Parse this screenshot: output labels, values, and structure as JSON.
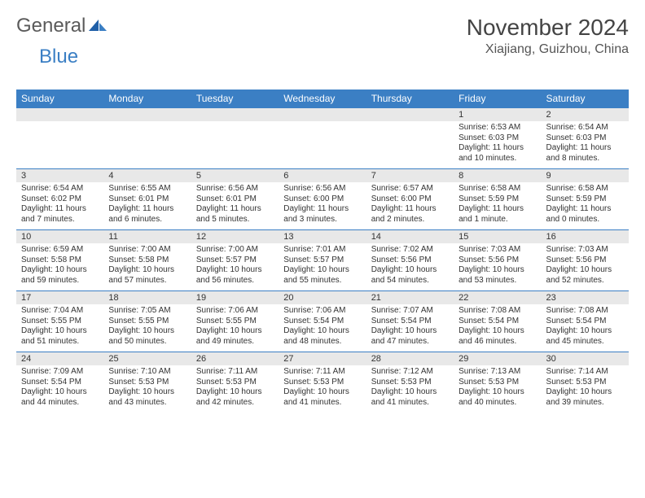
{
  "logo": {
    "part1": "General",
    "part2": "Blue"
  },
  "title": "November 2024",
  "location": "Xiajiang, Guizhou, China",
  "colors": {
    "header_bg": "#3b7fc4",
    "header_text": "#ffffff",
    "daynum_bg": "#e8e8e8",
    "border": "#3b7fc4",
    "body_text": "#333333",
    "logo_gray": "#5a5a5a",
    "logo_blue": "#3b7fc4"
  },
  "weekdays": [
    "Sunday",
    "Monday",
    "Tuesday",
    "Wednesday",
    "Thursday",
    "Friday",
    "Saturday"
  ],
  "weeks": [
    [
      null,
      null,
      null,
      null,
      null,
      {
        "n": "1",
        "sr": "6:53 AM",
        "ss": "6:03 PM",
        "dl": "11 hours and 10 minutes."
      },
      {
        "n": "2",
        "sr": "6:54 AM",
        "ss": "6:03 PM",
        "dl": "11 hours and 8 minutes."
      }
    ],
    [
      {
        "n": "3",
        "sr": "6:54 AM",
        "ss": "6:02 PM",
        "dl": "11 hours and 7 minutes."
      },
      {
        "n": "4",
        "sr": "6:55 AM",
        "ss": "6:01 PM",
        "dl": "11 hours and 6 minutes."
      },
      {
        "n": "5",
        "sr": "6:56 AM",
        "ss": "6:01 PM",
        "dl": "11 hours and 5 minutes."
      },
      {
        "n": "6",
        "sr": "6:56 AM",
        "ss": "6:00 PM",
        "dl": "11 hours and 3 minutes."
      },
      {
        "n": "7",
        "sr": "6:57 AM",
        "ss": "6:00 PM",
        "dl": "11 hours and 2 minutes."
      },
      {
        "n": "8",
        "sr": "6:58 AM",
        "ss": "5:59 PM",
        "dl": "11 hours and 1 minute."
      },
      {
        "n": "9",
        "sr": "6:58 AM",
        "ss": "5:59 PM",
        "dl": "11 hours and 0 minutes."
      }
    ],
    [
      {
        "n": "10",
        "sr": "6:59 AM",
        "ss": "5:58 PM",
        "dl": "10 hours and 59 minutes."
      },
      {
        "n": "11",
        "sr": "7:00 AM",
        "ss": "5:58 PM",
        "dl": "10 hours and 57 minutes."
      },
      {
        "n": "12",
        "sr": "7:00 AM",
        "ss": "5:57 PM",
        "dl": "10 hours and 56 minutes."
      },
      {
        "n": "13",
        "sr": "7:01 AM",
        "ss": "5:57 PM",
        "dl": "10 hours and 55 minutes."
      },
      {
        "n": "14",
        "sr": "7:02 AM",
        "ss": "5:56 PM",
        "dl": "10 hours and 54 minutes."
      },
      {
        "n": "15",
        "sr": "7:03 AM",
        "ss": "5:56 PM",
        "dl": "10 hours and 53 minutes."
      },
      {
        "n": "16",
        "sr": "7:03 AM",
        "ss": "5:56 PM",
        "dl": "10 hours and 52 minutes."
      }
    ],
    [
      {
        "n": "17",
        "sr": "7:04 AM",
        "ss": "5:55 PM",
        "dl": "10 hours and 51 minutes."
      },
      {
        "n": "18",
        "sr": "7:05 AM",
        "ss": "5:55 PM",
        "dl": "10 hours and 50 minutes."
      },
      {
        "n": "19",
        "sr": "7:06 AM",
        "ss": "5:55 PM",
        "dl": "10 hours and 49 minutes."
      },
      {
        "n": "20",
        "sr": "7:06 AM",
        "ss": "5:54 PM",
        "dl": "10 hours and 48 minutes."
      },
      {
        "n": "21",
        "sr": "7:07 AM",
        "ss": "5:54 PM",
        "dl": "10 hours and 47 minutes."
      },
      {
        "n": "22",
        "sr": "7:08 AM",
        "ss": "5:54 PM",
        "dl": "10 hours and 46 minutes."
      },
      {
        "n": "23",
        "sr": "7:08 AM",
        "ss": "5:54 PM",
        "dl": "10 hours and 45 minutes."
      }
    ],
    [
      {
        "n": "24",
        "sr": "7:09 AM",
        "ss": "5:54 PM",
        "dl": "10 hours and 44 minutes."
      },
      {
        "n": "25",
        "sr": "7:10 AM",
        "ss": "5:53 PM",
        "dl": "10 hours and 43 minutes."
      },
      {
        "n": "26",
        "sr": "7:11 AM",
        "ss": "5:53 PM",
        "dl": "10 hours and 42 minutes."
      },
      {
        "n": "27",
        "sr": "7:11 AM",
        "ss": "5:53 PM",
        "dl": "10 hours and 41 minutes."
      },
      {
        "n": "28",
        "sr": "7:12 AM",
        "ss": "5:53 PM",
        "dl": "10 hours and 41 minutes."
      },
      {
        "n": "29",
        "sr": "7:13 AM",
        "ss": "5:53 PM",
        "dl": "10 hours and 40 minutes."
      },
      {
        "n": "30",
        "sr": "7:14 AM",
        "ss": "5:53 PM",
        "dl": "10 hours and 39 minutes."
      }
    ]
  ],
  "labels": {
    "sunrise": "Sunrise:",
    "sunset": "Sunset:",
    "daylight": "Daylight:"
  }
}
